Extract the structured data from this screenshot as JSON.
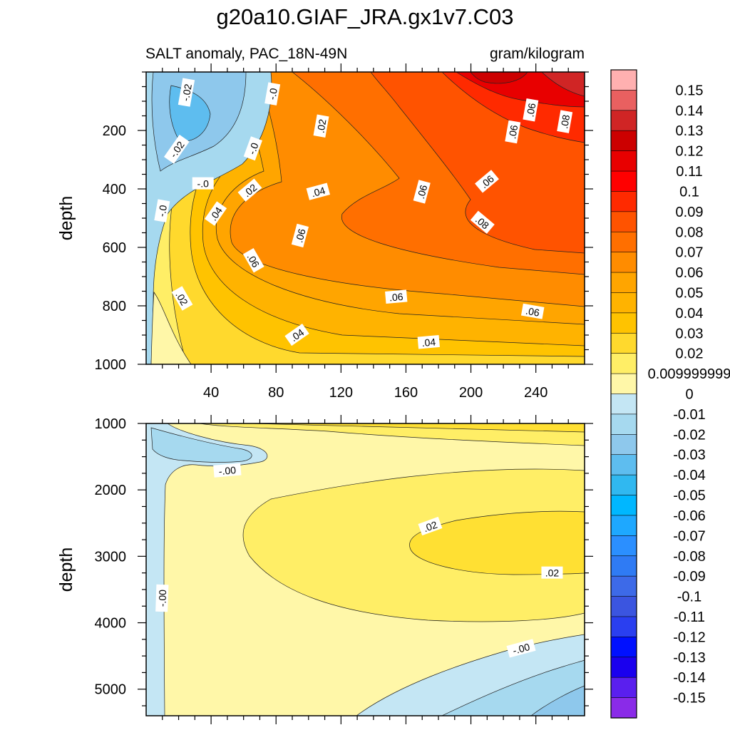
{
  "figure": {
    "title": "g20a10.GIAF_JRA.gx1v7.C03",
    "subtitle_left": "SALT anomaly, PAC_18N-49N",
    "subtitle_right": "gram/kilogram"
  },
  "colorbar": {
    "labels": [
      "0.15",
      "0.14",
      "0.13",
      "0.12",
      "0.11",
      "0.1",
      "0.09",
      "0.08",
      "0.07",
      "0.06",
      "0.05",
      "0.04",
      "0.03",
      "0.02",
      "0.009999999",
      "0",
      "-0.01",
      "-0.02",
      "-0.03",
      "-0.04",
      "-0.05",
      "-0.06",
      "-0.07",
      "-0.08",
      "-0.09",
      "-0.1",
      "-0.11",
      "-0.12",
      "-0.13",
      "-0.14",
      "-0.15"
    ],
    "colors": [
      "#ffb0b0",
      "#e96060",
      "#d02525",
      "#cc0000",
      "#e80000",
      "#ff0000",
      "#ff2a00",
      "#ff5300",
      "#ff6f00",
      "#ff8c00",
      "#ffa500",
      "#ffb300",
      "#ffc300",
      "#ffd92d",
      "#ffee66",
      "#fff7a8",
      "#c4e6f4",
      "#a6d9ef",
      "#8ec8ec",
      "#5ebdef",
      "#30b8f0",
      "#00b7ff",
      "#1ea8ff",
      "#2b8fff",
      "#2f7bf4",
      "#3d6ae8",
      "#3b55e0",
      "#2a3ff0",
      "#0010ff",
      "#1a00ee",
      "#5a1fee",
      "#8a2be8"
    ]
  },
  "chart_data": [
    {
      "type": "heatmap",
      "panel": "upper",
      "xlabel": "",
      "ylabel": "depth",
      "xlim": [
        0,
        270
      ],
      "ylim": [
        1000,
        0
      ],
      "xticks": [
        40,
        80,
        120,
        160,
        200,
        240
      ],
      "yticks": [
        200,
        400,
        600,
        800,
        1000
      ],
      "contour_labels": [
        {
          "text": "-.02",
          "x": 25,
          "y": 70,
          "rot": -80
        },
        {
          "text": "-.0",
          "x": 78,
          "y": 75,
          "rot": -80
        },
        {
          "text": ".02",
          "x": 108,
          "y": 185,
          "rot": -80
        },
        {
          "text": ".06",
          "x": 237,
          "y": 130,
          "rot": -80
        },
        {
          "text": ".08",
          "x": 258,
          "y": 170,
          "rot": -80
        },
        {
          "text": ".06",
          "x": 226,
          "y": 205,
          "rot": -80
        },
        {
          "text": "-.02",
          "x": 19,
          "y": 265,
          "rot": -55
        },
        {
          "text": "-.0",
          "x": 66,
          "y": 262,
          "rot": -70
        },
        {
          "text": "-.0",
          "x": 35,
          "y": 382,
          "rot": 0
        },
        {
          "text": ".02",
          "x": 64,
          "y": 405,
          "rot": -40
        },
        {
          "text": ".04",
          "x": 106,
          "y": 410,
          "rot": -15
        },
        {
          "text": ".06",
          "x": 170,
          "y": 410,
          "rot": -75
        },
        {
          "text": ".06",
          "x": 210,
          "y": 375,
          "rot": -40
        },
        {
          "text": "-.0",
          "x": 10,
          "y": 475,
          "rot": -80
        },
        {
          "text": ".04",
          "x": 43,
          "y": 485,
          "rot": -55
        },
        {
          "text": ".06",
          "x": 95,
          "y": 560,
          "rot": -75
        },
        {
          "text": ".08",
          "x": 207,
          "y": 515,
          "rot": 40
        },
        {
          "text": ".06",
          "x": 66,
          "y": 645,
          "rot": 60
        },
        {
          "text": ".02",
          "x": 22,
          "y": 775,
          "rot": 60
        },
        {
          "text": ".06",
          "x": 154,
          "y": 770,
          "rot": -5
        },
        {
          "text": ".06",
          "x": 238,
          "y": 820,
          "rot": 10
        },
        {
          "text": ".04",
          "x": 93,
          "y": 900,
          "rot": -35
        },
        {
          "text": ".04",
          "x": 174,
          "y": 925,
          "rot": -5
        }
      ]
    },
    {
      "type": "heatmap",
      "panel": "lower",
      "xlabel": "",
      "ylabel": "depth",
      "xlim": [
        0,
        270
      ],
      "ylim": [
        5400,
        1000
      ],
      "xticks": [
        40,
        80,
        120,
        160,
        200,
        240
      ],
      "yticks": [
        1000,
        2000,
        3000,
        4000,
        5000
      ],
      "contour_labels": [
        {
          "text": "-.00",
          "x": 50,
          "y": 1710,
          "rot": -5
        },
        {
          "text": ".02",
          "x": 175,
          "y": 2550,
          "rot": -20
        },
        {
          "text": ".02",
          "x": 250,
          "y": 3250,
          "rot": 0
        },
        {
          "text": "-.00",
          "x": 10,
          "y": 3630,
          "rot": -88
        },
        {
          "text": "-.00",
          "x": 231,
          "y": 4390,
          "rot": -15
        }
      ]
    }
  ]
}
